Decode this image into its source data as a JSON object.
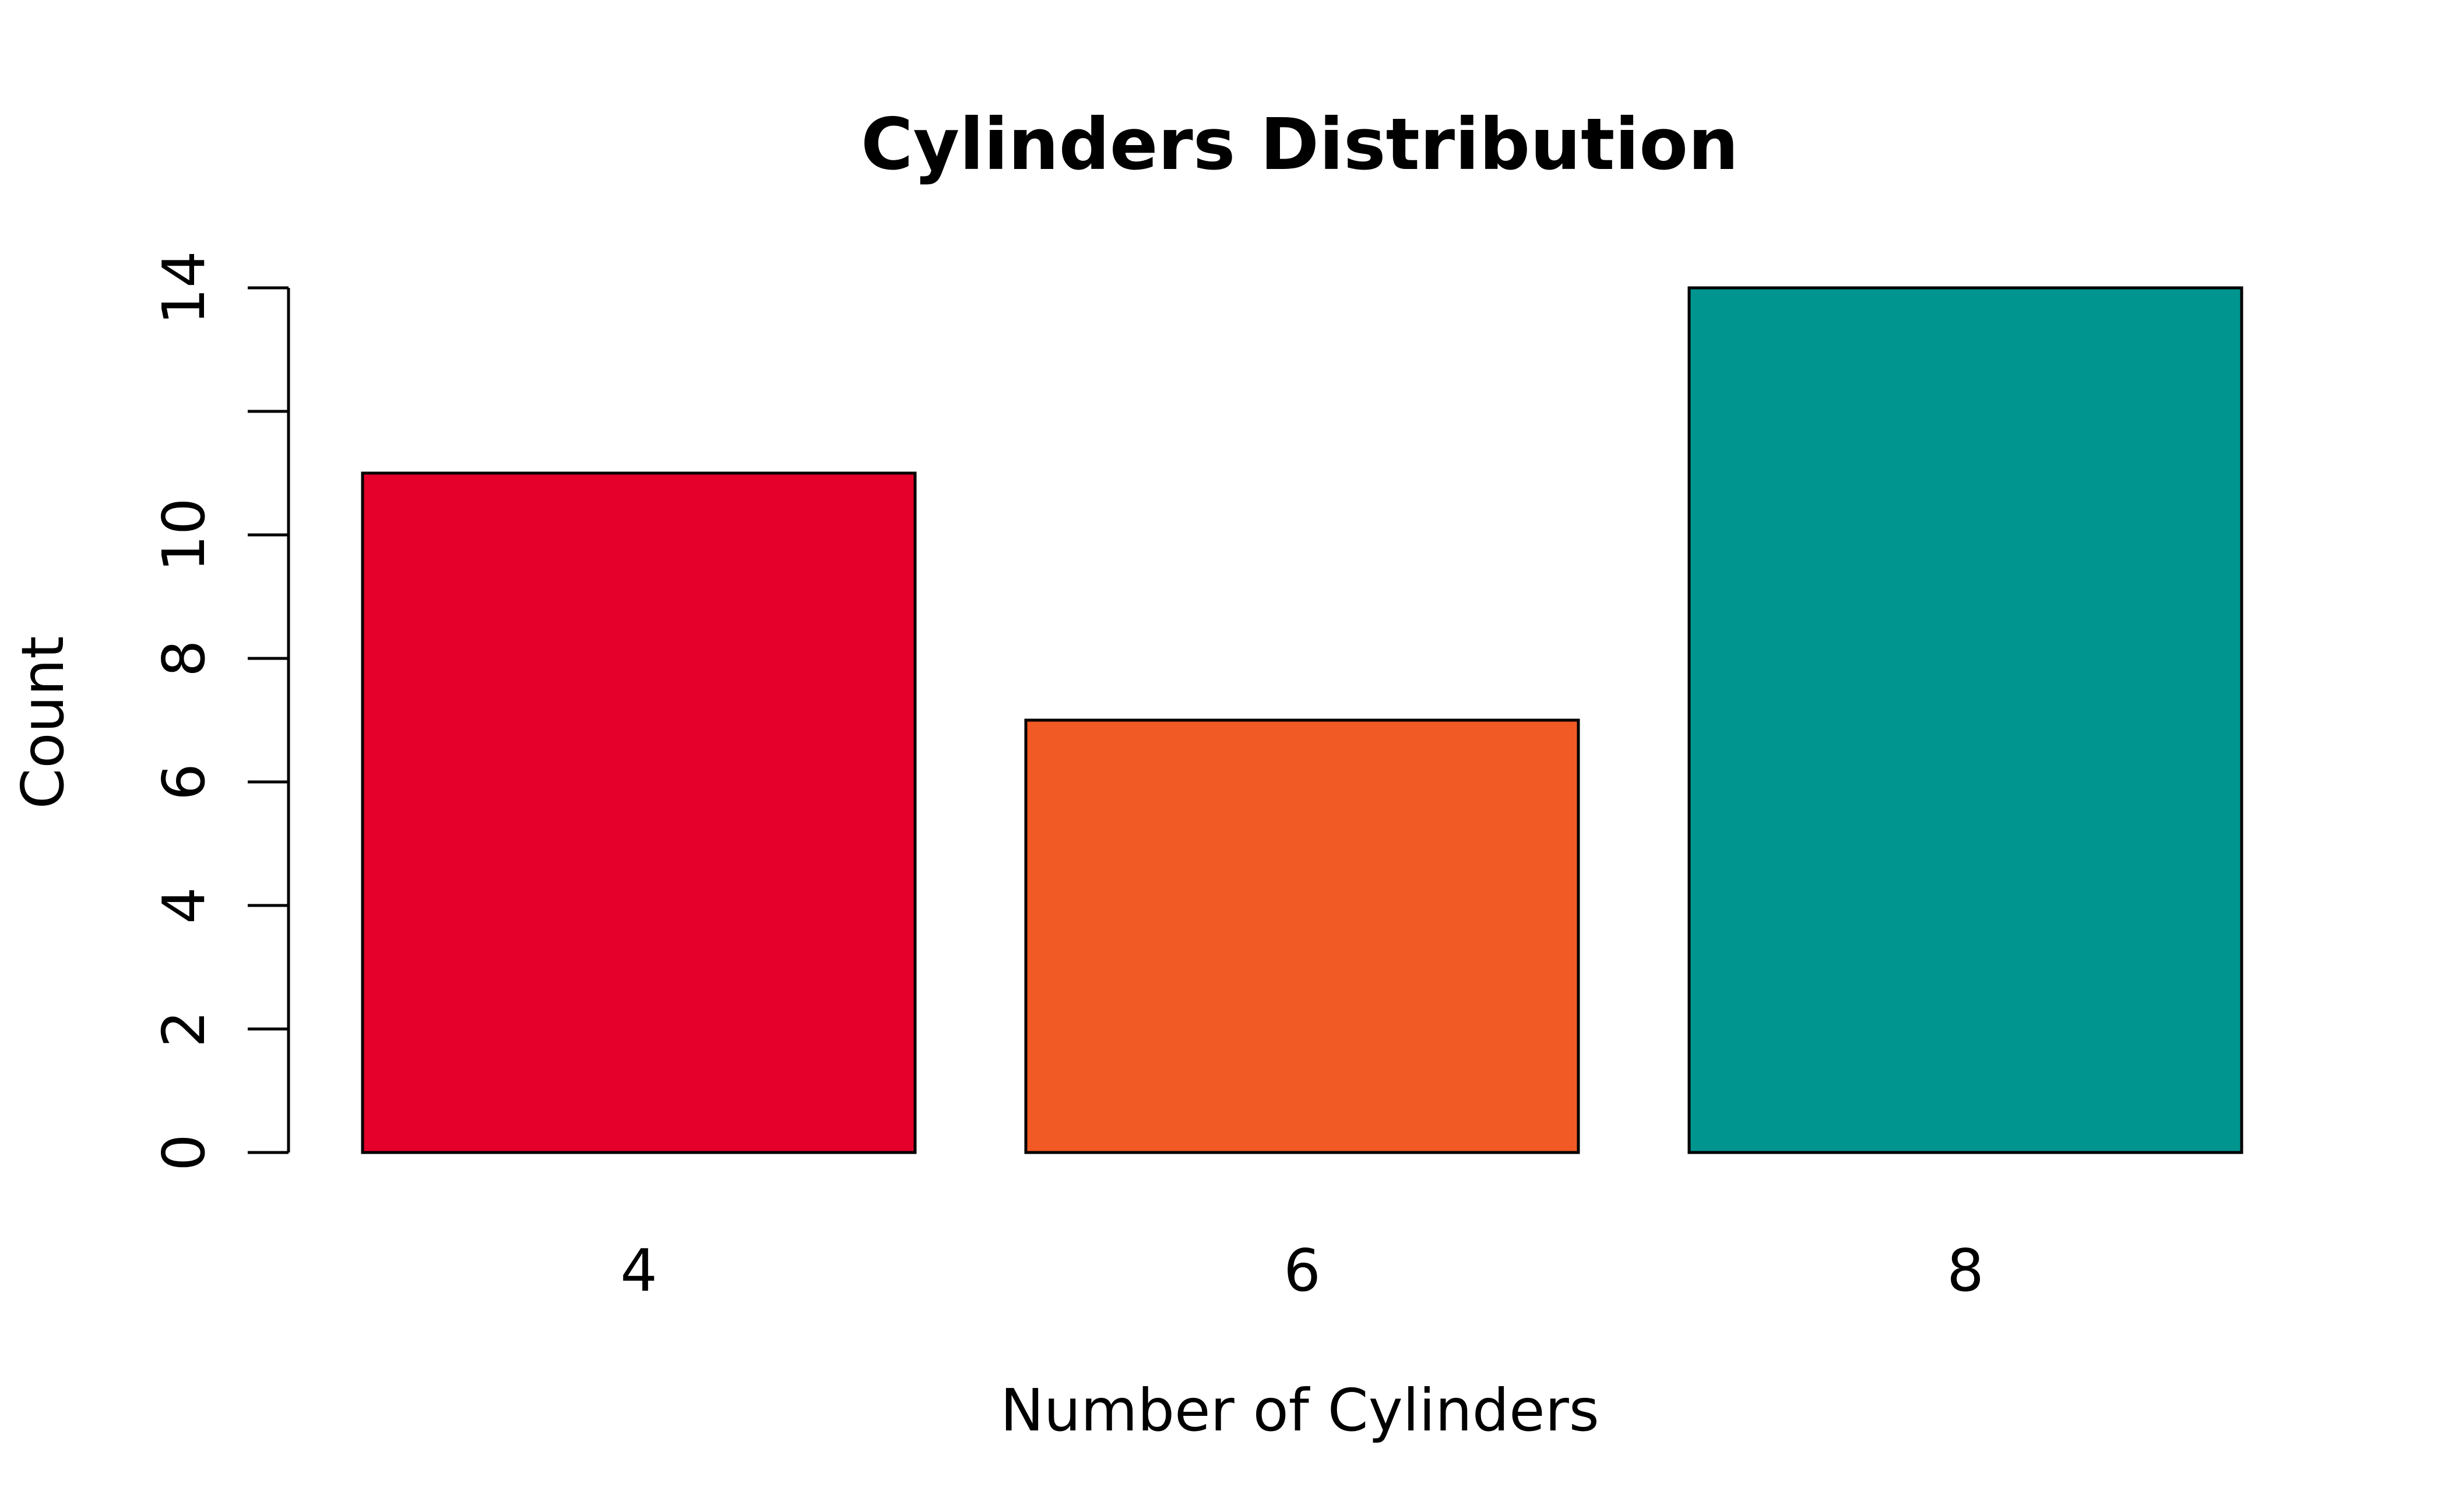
{
  "chart_data": {
    "type": "bar",
    "title": "Cylinders Distribution",
    "xlabel": "Number of Cylinders",
    "ylabel": "Count",
    "categories": [
      "4",
      "6",
      "8"
    ],
    "values": [
      11,
      7,
      14
    ],
    "colors": [
      "#E4002B",
      "#F15A24",
      "#00958F"
    ],
    "ylim": [
      0,
      14
    ],
    "yticks": [
      0,
      2,
      4,
      6,
      8,
      10,
      12,
      14
    ],
    "ytick_labels": [
      "0",
      "2",
      "4",
      "6",
      "8",
      "10",
      "",
      "14"
    ],
    "grid": false,
    "legend": "none"
  }
}
